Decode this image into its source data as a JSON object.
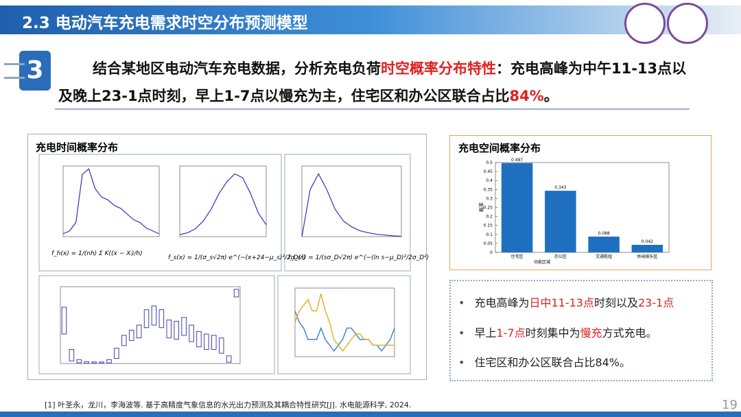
{
  "header": {
    "title": "2.3 电动汽车充电需求时空分布预测模型"
  },
  "icon": {
    "label": "3"
  },
  "intro": {
    "parts": [
      {
        "text": "结合某地区电动汽车充电数据，分析充电负荷",
        "color": "#111111"
      },
      {
        "text": "时空概率分布特性",
        "color": "#e02020"
      },
      {
        "text": "：充电高峰为中午11-13点以及晚上23-1点时刻，早上1-7点以慢充为主，住宅区和办公区联合占比",
        "color": "#111111"
      },
      {
        "text": "84%",
        "color": "#e02020"
      },
      {
        "text": "。",
        "color": "#111111"
      }
    ]
  },
  "time_panel": {
    "title": "充电时间概率分布",
    "densities": [
      {
        "values": [
          0.01,
          0.02,
          0.05,
          0.22,
          0.24,
          0.17,
          0.14,
          0.13,
          0.11,
          0.1,
          0.08,
          0.06,
          0.05,
          0.03,
          0.02,
          0.01
        ],
        "ylim": [
          0,
          0.25
        ],
        "formula": "f_h(x) = 1/(nh) Σ K((x − Xᵢ)/h)"
      },
      {
        "values": [
          0.005,
          0.01,
          0.02,
          0.04,
          0.07,
          0.11,
          0.14,
          0.16,
          0.15,
          0.11,
          0.06,
          0.03
        ],
        "ylim": [
          0,
          0.18
        ],
        "formula": "f_s(x) = 1/(σ_s√2π) e^(−(x+24−μ_s)²/2σ_s²)"
      },
      {
        "values": [
          0,
          0.12,
          0.16,
          0.12,
          0.07,
          0.04,
          0.025,
          0.015,
          0.01,
          0.006,
          0.004,
          0.002,
          0.001
        ],
        "ylim": [
          0,
          0.18
        ],
        "formula": "f_D(s) = 1/(sσ_D√2π) e^(−(ln s−μ_D)²/2σ_D²)"
      }
    ],
    "boxplot": {
      "ylim": [
        0,
        600
      ],
      "boxes": [
        [
          230,
          440
        ],
        [
          20,
          110
        ],
        [
          5,
          30
        ],
        [
          2,
          15
        ],
        [
          2,
          12
        ],
        [
          2,
          12
        ],
        [
          5,
          30
        ],
        [
          40,
          120
        ],
        [
          140,
          220
        ],
        [
          180,
          260
        ],
        [
          200,
          300
        ],
        [
          280,
          420
        ],
        [
          300,
          450
        ],
        [
          280,
          420
        ],
        [
          200,
          340
        ],
        [
          190,
          330
        ],
        [
          220,
          360
        ],
        [
          170,
          300
        ],
        [
          130,
          250
        ],
        [
          110,
          230
        ],
        [
          110,
          220
        ],
        [
          80,
          200
        ],
        [
          10,
          60
        ],
        [
          520,
          580
        ]
      ]
    },
    "lines": {
      "ylim": [
        0,
        12
      ],
      "series": [
        {
          "color": "#3a7fd0",
          "values": [
            8,
            6,
            5,
            3,
            3,
            3,
            5,
            3,
            2,
            1,
            2,
            3,
            5,
            5,
            4,
            3,
            3,
            3,
            2,
            2,
            1,
            2,
            3,
            5
          ]
        },
        {
          "color": "#e0b020",
          "values": [
            6,
            8,
            9,
            10,
            8,
            8,
            11,
            8,
            6,
            3,
            2,
            1,
            2,
            3,
            4,
            4,
            3,
            3,
            2,
            2,
            2,
            2,
            2,
            2
          ]
        }
      ]
    }
  },
  "chart_data": {
    "type": "bar",
    "title": "充电空间概率分布",
    "categories": [
      "住宅区",
      "办公区",
      "交通枢纽",
      "休闲娱乐区"
    ],
    "values": [
      0.497,
      0.343,
      0.088,
      0.042
    ],
    "color": "#1f6fc0",
    "ylim": [
      0,
      0.5
    ],
    "yticks": [
      0,
      0.05,
      0.1,
      0.15,
      0.2,
      0.25,
      0.3,
      0.35,
      0.4,
      0.45,
      0.5
    ],
    "y_label": "概率",
    "x_label": "功能区域"
  },
  "bullets": [
    [
      {
        "text": "充电高峰为",
        "color": "#222222"
      },
      {
        "text": "日中11-13点",
        "color": "#e02020"
      },
      {
        "text": "时刻以及",
        "color": "#222222"
      },
      {
        "text": "23-1点",
        "color": "#e02020"
      }
    ],
    [
      {
        "text": "早上",
        "color": "#222222"
      },
      {
        "text": "1-7点",
        "color": "#e02020"
      },
      {
        "text": "时刻集中为",
        "color": "#222222"
      },
      {
        "text": "慢充",
        "color": "#e02020"
      },
      {
        "text": "方式充电。",
        "color": "#222222"
      }
    ],
    [
      {
        "text": "住宅区和办公区联合占比84%。",
        "color": "#222222"
      }
    ]
  ],
  "reference": "[1] 叶圣永，龙川，李海波等. 基于高精度气象信息的水光出力预测及其耦合特性研究[J]. 水电能源科学, 2024.",
  "page_number": "19"
}
